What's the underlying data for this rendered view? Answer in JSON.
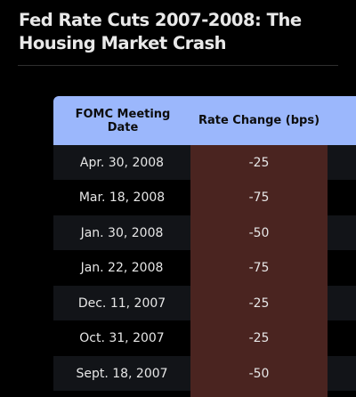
{
  "title": "Fed Rate Cuts 2007-2008: The Housing Market Crash",
  "table": {
    "headers": {
      "date": "FOMC Meeting Date",
      "rate": "Rate Change (bps)"
    },
    "rows": [
      {
        "date": "Apr. 30, 2008",
        "rate": "-25"
      },
      {
        "date": "Mar. 18, 2008",
        "rate": "-75"
      },
      {
        "date": "Jan. 30, 2008",
        "rate": "-50"
      },
      {
        "date": "Jan. 22, 2008",
        "rate": "-75"
      },
      {
        "date": "Dec. 11, 2007",
        "rate": "-25"
      },
      {
        "date": "Oct. 31, 2007",
        "rate": "-25"
      },
      {
        "date": "Sept. 18, 2007",
        "rate": "-50"
      }
    ]
  },
  "colors": {
    "background": "#000000",
    "header": "#9bb7fc",
    "rate_column": "#4a2420",
    "row_alternate": "#121418"
  }
}
